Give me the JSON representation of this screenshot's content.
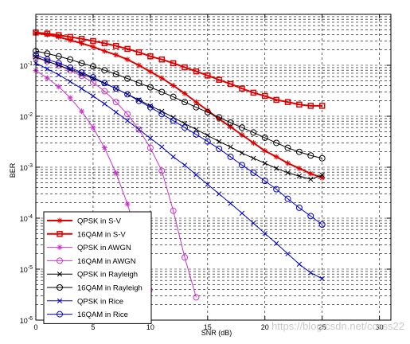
{
  "chart_data": {
    "type": "line",
    "xlabel": "SNR (dB)",
    "ylabel": "BER",
    "xlim": [
      0,
      31
    ],
    "ylim": [
      1e-06,
      1
    ],
    "yscale": "log",
    "grid": true,
    "legend": "bottom-left",
    "x_ticks": [
      "0",
      "5",
      "10",
      "15",
      "20",
      "25",
      "30"
    ],
    "y_ticks": [
      {
        "base": "10",
        "exp": "-6"
      },
      {
        "base": "10",
        "exp": "-5"
      },
      {
        "base": "10",
        "exp": "-4"
      },
      {
        "base": "10",
        "exp": "-3"
      },
      {
        "base": "10",
        "exp": "-2"
      },
      {
        "base": "10",
        "exp": "-1"
      }
    ],
    "series": [
      {
        "name": "QPSK in S-V",
        "color": "#e00000",
        "marker": "star",
        "line_width": 2,
        "x": [
          0,
          1,
          2,
          3,
          4,
          5,
          6,
          7,
          8,
          9,
          10,
          11,
          12,
          13,
          14,
          15,
          16,
          17,
          18,
          19,
          20,
          21,
          22,
          23,
          24,
          25
        ],
        "y": [
          0.43,
          0.4,
          0.36,
          0.31,
          0.27,
          0.23,
          0.19,
          0.16,
          0.13,
          0.1,
          0.075,
          0.056,
          0.04,
          0.028,
          0.019,
          0.013,
          0.0088,
          0.0062,
          0.0043,
          0.003,
          0.0021,
          0.0016,
          0.0012,
          0.00095,
          0.00075,
          0.00062
        ]
      },
      {
        "name": "16QAM in S-V",
        "color": "#e00000",
        "marker": "square",
        "line_width": 2,
        "x": [
          0,
          1,
          2,
          3,
          4,
          5,
          6,
          7,
          8,
          9,
          10,
          11,
          12,
          13,
          14,
          15,
          16,
          17,
          18,
          19,
          20,
          21,
          22,
          23,
          24,
          25
        ],
        "y": [
          0.44,
          0.42,
          0.39,
          0.36,
          0.33,
          0.3,
          0.27,
          0.24,
          0.21,
          0.18,
          0.15,
          0.13,
          0.11,
          0.091,
          0.076,
          0.063,
          0.052,
          0.043,
          0.035,
          0.029,
          0.025,
          0.021,
          0.019,
          0.017,
          0.016,
          0.016
        ]
      },
      {
        "name": "QPSK in AWGN",
        "color": "#cc33cc",
        "marker": "star",
        "line_width": 1,
        "x": [
          0,
          1,
          2,
          3,
          4,
          5,
          6,
          7,
          8,
          9,
          10
        ],
        "y": [
          0.079,
          0.056,
          0.038,
          0.023,
          0.0125,
          0.006,
          0.0024,
          0.00077,
          0.00019,
          3.4e-05,
          3.9e-06
        ]
      },
      {
        "name": "16QAM in AWGN",
        "color": "#cc33cc",
        "marker": "circle",
        "line_width": 1,
        "x": [
          0,
          1,
          2,
          3,
          4,
          5,
          6,
          7,
          8,
          9,
          10,
          11,
          12,
          13,
          14
        ],
        "y": [
          0.14,
          0.12,
          0.1,
          0.079,
          0.062,
          0.046,
          0.031,
          0.019,
          0.011,
          0.0055,
          0.0024,
          0.00085,
          0.00014,
          1.7e-05,
          2.8e-06
        ]
      },
      {
        "name": "QPSK in Rayleigh",
        "color": "#000000",
        "marker": "x",
        "line_width": 1,
        "x": [
          0,
          1,
          2,
          3,
          4,
          5,
          6,
          7,
          8,
          9,
          10,
          11,
          12,
          13,
          14,
          15,
          16,
          17,
          18,
          19,
          20,
          21,
          22,
          23,
          24,
          25
        ],
        "y": [
          0.146,
          0.12,
          0.1,
          0.083,
          0.068,
          0.055,
          0.044,
          0.035,
          0.027,
          0.021,
          0.016,
          0.0125,
          0.0095,
          0.0072,
          0.0055,
          0.0042,
          0.0032,
          0.0025,
          0.0019,
          0.0015,
          0.0012,
          0.00095,
          0.00078,
          0.00067,
          0.00058,
          0.0007
        ]
      },
      {
        "name": "16QAM in Rayleigh",
        "color": "#000000",
        "marker": "circle",
        "line_width": 1,
        "x": [
          0,
          1,
          2,
          3,
          4,
          5,
          6,
          7,
          8,
          9,
          10,
          11,
          12,
          13,
          14,
          15,
          16,
          17,
          18,
          19,
          20,
          21,
          22,
          23,
          24,
          25
        ],
        "y": [
          0.19,
          0.17,
          0.15,
          0.13,
          0.11,
          0.095,
          0.08,
          0.067,
          0.055,
          0.045,
          0.037,
          0.03,
          0.024,
          0.019,
          0.015,
          0.012,
          0.0095,
          0.0075,
          0.006,
          0.0048,
          0.0038,
          0.003,
          0.0024,
          0.002,
          0.0017,
          0.0015
        ]
      },
      {
        "name": "QPSK in Rice",
        "color": "#0000cc",
        "marker": "x",
        "line_width": 1,
        "x": [
          0,
          1,
          2,
          3,
          4,
          5,
          6,
          7,
          8,
          9,
          10,
          11,
          12,
          13,
          14,
          15,
          16,
          17,
          18,
          19,
          20,
          21,
          22,
          23,
          24,
          25
        ],
        "y": [
          0.11,
          0.085,
          0.065,
          0.048,
          0.035,
          0.025,
          0.0175,
          0.012,
          0.0082,
          0.0055,
          0.0037,
          0.0025,
          0.0016,
          0.0011,
          0.00071,
          0.00046,
          0.0003,
          0.000195,
          0.000125,
          8e-05,
          5e-05,
          3.2e-05,
          2e-05,
          1.25e-05,
          8.5e-06,
          6.5e-06
        ]
      },
      {
        "name": "16QAM in Rice",
        "color": "#0000cc",
        "marker": "circle",
        "line_width": 1,
        "x": [
          0,
          1,
          2,
          3,
          4,
          5,
          6,
          7,
          8,
          9,
          10,
          11,
          12,
          13,
          14,
          15,
          16,
          17,
          18,
          19,
          20,
          21,
          22,
          23,
          24,
          25
        ],
        "y": [
          0.16,
          0.13,
          0.11,
          0.09,
          0.072,
          0.058,
          0.045,
          0.035,
          0.027,
          0.02,
          0.015,
          0.011,
          0.0082,
          0.006,
          0.0044,
          0.0032,
          0.0023,
          0.0016,
          0.0011,
          0.00078,
          0.00054,
          0.00037,
          0.00024,
          0.00016,
          0.00011,
          7.5e-05
        ]
      }
    ]
  },
  "watermark": "https://blog.csdn.net/ccsss22"
}
